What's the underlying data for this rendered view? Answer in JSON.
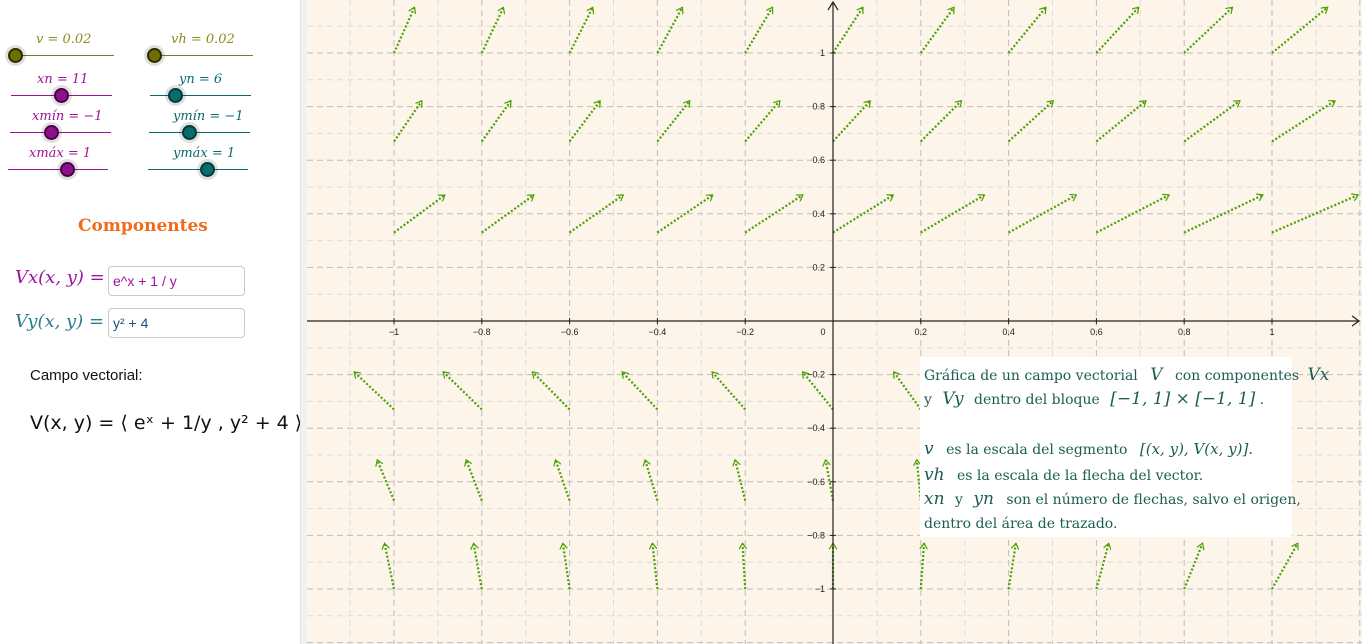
{
  "colors": {
    "v_slider": "#6f6f00",
    "v_slider_text": "#8b8b1a",
    "x_slider": "#a0129b",
    "y_slider": "#0b6b6b",
    "components_title": "#ee6c1b",
    "vx_label": "#a0129b",
    "vy_label": "#2a7d8c",
    "vector": "#4aa100",
    "info_text": "#1b5e52",
    "plot_background": "#fdf4ea"
  },
  "sliders": {
    "v": {
      "label": "v = 0.02",
      "value": 0.02,
      "fraction": 0.0
    },
    "v_h": {
      "label": "v_h = 0.02",
      "display": "vh = 0.02",
      "value": 0.02,
      "fraction": 0.0
    },
    "x_n": {
      "display": "xn = 11",
      "value": 11,
      "fraction": 0.5
    },
    "y_n": {
      "display": "yn = 6",
      "value": 6,
      "fraction": 0.25
    },
    "x_min": {
      "display": "xmín = −1",
      "value": -1,
      "fraction": 0.45
    },
    "y_min": {
      "display": "ymín = −1",
      "value": -1,
      "fraction": 0.45
    },
    "x_max": {
      "display": "xmáx = 1",
      "value": 1,
      "fraction": 0.55
    },
    "y_max": {
      "display": "ymáx = 1",
      "value": 1,
      "fraction": 0.6
    }
  },
  "components": {
    "title": "Componentes",
    "vx_label": "Vx(x, y) =",
    "vx_value": "e^x + 1 / y",
    "vy_label": "Vy(x, y) =",
    "vy_value": "y² + 4"
  },
  "campo": {
    "label": "Campo vectorial:",
    "formula": "V(x, y) = ⟨ eˣ + 1/y , y² + 4 ⟩"
  },
  "info": {
    "line1_a": "Gráfica de un campo vectorial",
    "line1_v": "V",
    "line1_b": "con componentes",
    "line1_vx": "Vx",
    "line2_y": "y",
    "line2_vy": "Vy",
    "line2_b": "dentro del bloque",
    "line2_block": "[−1, 1] × [−1, 1]",
    "line2_end": ".",
    "line3_v": "v",
    "line3_b": "es la escala del segmento",
    "line3_seg": "[(x, y), V(x, y)].",
    "line4_vh": "vh",
    "line4_b": "es la escala de la flecha del vector.",
    "line5_xn": "xn",
    "line5_y": "y",
    "line5_yn": "yn",
    "line5_b": "son el número de flechas, salvo el origen,",
    "line6": "dentro del área de trazado."
  },
  "axes": {
    "x_ticks": [
      "−1",
      "−0.8",
      "−0.6",
      "−0.4",
      "−0.2",
      "0",
      "0.2",
      "0.4",
      "0.6",
      "0.8",
      "1"
    ],
    "y_ticks_pos": [
      "0.2",
      "0.4",
      "0.6",
      "0.8",
      "1"
    ],
    "y_ticks_neg": [
      "−0.2",
      "−0.4",
      "−0.6",
      "−0.8",
      "−1"
    ],
    "x_range": [
      -1.2,
      1.21
    ],
    "y_range": [
      -1.2,
      1.2
    ]
  },
  "chart_data": {
    "type": "vector_field",
    "field": "V(x, y) = (e^x + 1/y, y^2 + 4)",
    "scale_v": 0.02,
    "grid_x": [
      -1.0,
      -0.8,
      -0.6,
      -0.4,
      -0.2,
      0,
      0.2,
      0.4,
      0.6,
      0.8,
      1.0
    ],
    "grid_y": [
      -1.0,
      -0.67,
      -0.33,
      0.33,
      0.67,
      1.0
    ],
    "xlim": [
      -1.2,
      1.21
    ],
    "ylim": [
      -1.2,
      1.2
    ],
    "grid": true
  }
}
